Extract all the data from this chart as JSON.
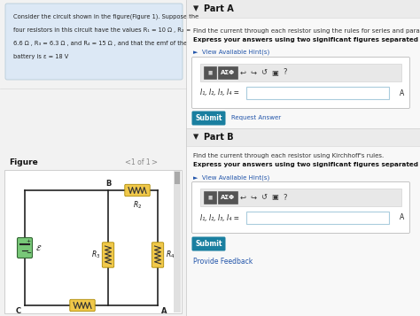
{
  "bg_color": "#f2f2f2",
  "left_panel_bg": "#dce8f5",
  "right_panel_bg": "#f7f7f7",
  "part_header_bg": "#ebebeb",
  "left_panel_text_line1": "Consider the circuit shown in the figure(Figure 1). Suppose the",
  "left_panel_text_line2": "four resistors in this circuit have the values R₁ = 10 Ω , R₂ =",
  "left_panel_text_line3": "6.6 Ω , R₃ = 6.3 Ω , and R₄ = 15 Ω , and that the emf of the",
  "left_panel_text_line4": "battery is ε = 18 V",
  "part_a_label": "Part A",
  "part_a_desc1": "Find the current through each resistor using the rules for series and parallel resistors.",
  "part_a_desc2": "Express your answers using two significant figures separated by commas.",
  "hint_a": "►  View Available Hint(s)",
  "input_label_a": "I₁, I₂, I₃, I₄ =",
  "unit_a": "A",
  "submit_a": "Submit",
  "request_answer_a": "Request Answer",
  "part_b_label": "Part B",
  "part_b_desc1": "Find the current through each resistor using Kirchhoff's rules.",
  "part_b_desc2": "Express your answers using two significant figures separated by commas.",
  "hint_b": "►  View Available Hint(s)",
  "input_label_b": "I₁, I₂, I₃, I₄ =",
  "unit_b": "A",
  "submit_b": "Submit",
  "provide_feedback": "Provide Feedback",
  "figure_label": "Figure",
  "nav_text": "1 of 1",
  "resistor_color": "#f0c84a",
  "battery_color": "#78c878",
  "toolbar_dark": "#555555",
  "toolbar_green": "#448855",
  "submit_color": "#1a7fa0",
  "input_bg": "#ffffff",
  "input_border": "#aaccdd",
  "panel_border": "#c8c8c8",
  "hint_color": "#2255aa",
  "feedback_color": "#2255aa",
  "wire_color": "#222222",
  "node_label_color": "#222222"
}
